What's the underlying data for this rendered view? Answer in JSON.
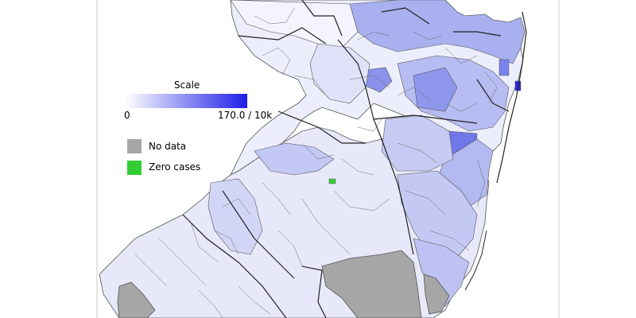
{
  "legend": {
    "title": "Scale",
    "min_label": "0",
    "max_label": "170.0 / 10k",
    "nodata_label": "No data",
    "zero_label": "Zero cases"
  },
  "colors": {
    "scale_low": "#ffffff",
    "scale_high": "#1d1de8",
    "no_data": "#a6a6a6",
    "zero_cases": "#33cc33",
    "border": "#555555"
  }
}
